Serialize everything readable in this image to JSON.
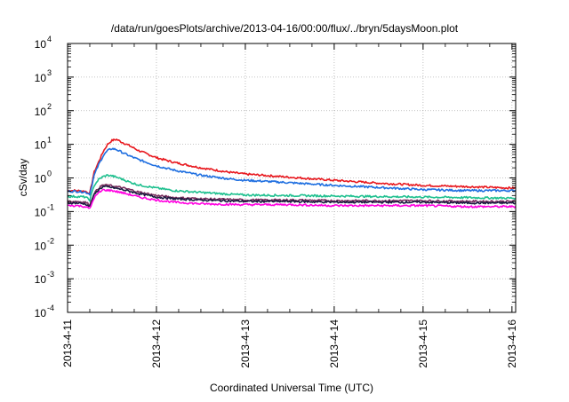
{
  "chart_data": {
    "type": "line",
    "title": "/data/run/goesPlots/archive/2013-04-16/00:00/flux/../bryn/5daysMoon.plot",
    "xlabel": "Coordinated Universal Time (UTC)",
    "ylabel": "cSv/day",
    "yscale": "log",
    "ylim": [
      0.0001,
      10000
    ],
    "xlim": [
      "2013-04-11",
      "2013-04-16 01:00"
    ],
    "grid": true,
    "y_ticks": [
      {
        "mantissa": "10",
        "exp": "-4",
        "value": 0.0001
      },
      {
        "mantissa": "10",
        "exp": "-3",
        "value": 0.001
      },
      {
        "mantissa": "10",
        "exp": "-2",
        "value": 0.01
      },
      {
        "mantissa": "10",
        "exp": "-1",
        "value": 0.1
      },
      {
        "mantissa": "10",
        "exp": "0",
        "value": 1
      },
      {
        "mantissa": "10",
        "exp": "1",
        "value": 10
      },
      {
        "mantissa": "10",
        "exp": "2",
        "value": 100
      },
      {
        "mantissa": "10",
        "exp": "3",
        "value": 1000
      },
      {
        "mantissa": "10",
        "exp": "4",
        "value": 10000
      }
    ],
    "x_ticks": [
      {
        "label": "2013-4-11",
        "day": 0
      },
      {
        "label": "2013-4-12",
        "day": 1
      },
      {
        "label": "2013-4-13",
        "day": 2
      },
      {
        "label": "2013-4-14",
        "day": 3
      },
      {
        "label": "2013-4-15",
        "day": 4
      },
      {
        "label": "2013-4-16",
        "day": 5
      }
    ],
    "series": [
      {
        "color": "#e8191f",
        "x": [
          0.0,
          0.1,
          0.2,
          0.25,
          0.3,
          0.35,
          0.4,
          0.45,
          0.5,
          0.55,
          0.6,
          0.7,
          0.8,
          1.0,
          1.2,
          1.5,
          1.8,
          2.0,
          2.2,
          2.5,
          3.0,
          3.5,
          4.0,
          4.5,
          5.0,
          5.04
        ],
        "y": [
          0.42,
          0.42,
          0.4,
          0.35,
          1.5,
          3.0,
          6.0,
          10.0,
          13.0,
          14.0,
          12.0,
          9.0,
          6.5,
          4.0,
          2.9,
          2.0,
          1.5,
          1.3,
          1.2,
          1.05,
          0.85,
          0.7,
          0.6,
          0.55,
          0.5,
          0.5
        ]
      },
      {
        "color": "#1f6fe0",
        "x": [
          0.0,
          0.1,
          0.2,
          0.25,
          0.3,
          0.35,
          0.4,
          0.45,
          0.5,
          0.55,
          0.6,
          0.7,
          0.8,
          1.0,
          1.2,
          1.5,
          1.8,
          2.0,
          2.2,
          2.5,
          3.0,
          3.5,
          4.0,
          4.5,
          5.0,
          5.04
        ],
        "y": [
          0.4,
          0.4,
          0.38,
          0.33,
          1.2,
          2.5,
          4.5,
          6.5,
          7.5,
          7.0,
          6.0,
          4.5,
          3.5,
          2.3,
          1.7,
          1.2,
          0.95,
          0.85,
          0.8,
          0.72,
          0.6,
          0.52,
          0.45,
          0.42,
          0.42,
          0.42
        ]
      },
      {
        "color": "#1fc08f",
        "x": [
          0.0,
          0.1,
          0.2,
          0.25,
          0.3,
          0.35,
          0.4,
          0.45,
          0.5,
          0.55,
          0.6,
          0.7,
          0.8,
          1.0,
          1.2,
          1.5,
          1.8,
          2.0,
          2.5,
          3.0,
          3.5,
          4.0,
          4.5,
          5.0,
          5.04
        ],
        "y": [
          0.28,
          0.28,
          0.27,
          0.22,
          0.6,
          0.9,
          1.1,
          1.2,
          1.15,
          1.05,
          0.95,
          0.75,
          0.62,
          0.5,
          0.42,
          0.37,
          0.33,
          0.31,
          0.3,
          0.29,
          0.28,
          0.27,
          0.26,
          0.25,
          0.25
        ]
      },
      {
        "color": "#7a2f5e",
        "x": [
          0.0,
          0.1,
          0.2,
          0.25,
          0.3,
          0.35,
          0.4,
          0.5,
          0.6,
          0.7,
          0.8,
          1.0,
          1.2,
          1.5,
          2.0,
          2.5,
          3.0,
          3.5,
          4.0,
          4.5,
          5.0,
          5.04
        ],
        "y": [
          0.2,
          0.2,
          0.19,
          0.16,
          0.35,
          0.5,
          0.62,
          0.58,
          0.52,
          0.45,
          0.38,
          0.3,
          0.26,
          0.24,
          0.22,
          0.22,
          0.21,
          0.21,
          0.21,
          0.2,
          0.2,
          0.2
        ]
      },
      {
        "color": "#1a1a40",
        "x": [
          0.0,
          0.1,
          0.2,
          0.25,
          0.3,
          0.35,
          0.4,
          0.5,
          0.6,
          0.7,
          0.8,
          1.0,
          1.2,
          1.5,
          2.0,
          2.5,
          3.0,
          3.5,
          4.0,
          4.5,
          5.0,
          5.04
        ],
        "y": [
          0.18,
          0.18,
          0.17,
          0.14,
          0.32,
          0.45,
          0.55,
          0.52,
          0.46,
          0.4,
          0.34,
          0.27,
          0.24,
          0.22,
          0.2,
          0.2,
          0.19,
          0.19,
          0.19,
          0.18,
          0.18,
          0.18
        ]
      },
      {
        "color": "#ff00e0",
        "x": [
          0.0,
          0.1,
          0.2,
          0.25,
          0.3,
          0.35,
          0.4,
          0.5,
          0.6,
          0.7,
          0.8,
          1.0,
          1.2,
          1.5,
          2.0,
          2.5,
          3.0,
          3.5,
          4.0,
          4.5,
          5.0,
          5.04
        ],
        "y": [
          0.15,
          0.15,
          0.14,
          0.12,
          0.26,
          0.36,
          0.44,
          0.42,
          0.37,
          0.32,
          0.27,
          0.22,
          0.19,
          0.17,
          0.16,
          0.16,
          0.15,
          0.15,
          0.15,
          0.14,
          0.14,
          0.14
        ]
      }
    ]
  }
}
